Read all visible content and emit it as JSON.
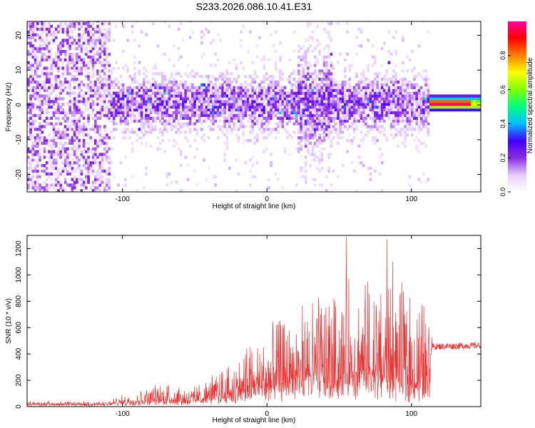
{
  "title": "S233.2026.086.10.41.E31",
  "chart_data": [
    {
      "type": "heatmap",
      "xlabel": "Height of straight line (km)",
      "ylabel": "Frequency (Hz)",
      "xlim": [
        -166,
        148
      ],
      "ylim": [
        -25,
        24
      ],
      "xticks": [
        -100,
        0,
        100
      ],
      "yticks": [
        -20,
        -10,
        0,
        10,
        20
      ],
      "colorbar": {
        "label": "Normalized spectral amplitude",
        "range": [
          0,
          1
        ],
        "ticks": [
          0.0,
          0.2,
          0.4,
          0.6,
          0.8
        ],
        "colors": [
          "#ffffff",
          "#e6ccff",
          "#8a2be2",
          "#4000ff",
          "#00bfff",
          "#00ff80",
          "#80ff00",
          "#ffff00",
          "#ff8000",
          "#ff0000",
          "#ff00a0"
        ]
      },
      "features": [
        {
          "name": "scattered noise",
          "x_range": [
            -166,
            -110
          ],
          "freq_range": [
            -25,
            24
          ],
          "amplitude": 0.12
        },
        {
          "name": "signal band",
          "x_range": [
            -110,
            112
          ],
          "freq_center": 0,
          "amplitude": 0.25
        },
        {
          "name": "strong carrier",
          "x_range": [
            112,
            148
          ],
          "freq_center": 0,
          "amplitude": 0.95
        }
      ]
    },
    {
      "type": "line",
      "xlabel": "Height of straight line (km)",
      "ylabel": "SNR (10 * v/v)",
      "xlim": [
        -166,
        148
      ],
      "ylim": [
        0,
        1300
      ],
      "xticks": [
        -100,
        0,
        100
      ],
      "yticks": [
        0,
        200,
        400,
        600,
        800,
        1000,
        1200
      ],
      "color": "#ee3333",
      "envelope": [
        {
          "x": -166,
          "base": 20,
          "peak": 40
        },
        {
          "x": -110,
          "base": 20,
          "peak": 40
        },
        {
          "x": -100,
          "base": 30,
          "peak": 90
        },
        {
          "x": -70,
          "base": 50,
          "peak": 200
        },
        {
          "x": -50,
          "base": 50,
          "peak": 150
        },
        {
          "x": -30,
          "base": 80,
          "peak": 300
        },
        {
          "x": -10,
          "base": 120,
          "peak": 500
        },
        {
          "x": 5,
          "base": 150,
          "peak": 650
        },
        {
          "x": 20,
          "base": 180,
          "peak": 750
        },
        {
          "x": 40,
          "base": 200,
          "peak": 900
        },
        {
          "x": 55,
          "base": 210,
          "peak": 1000
        },
        {
          "x": 75,
          "base": 200,
          "peak": 1050
        },
        {
          "x": 90,
          "base": 180,
          "peak": 950
        },
        {
          "x": 110,
          "base": 160,
          "peak": 800
        },
        {
          "x": 115,
          "base": 430,
          "peak": 480
        },
        {
          "x": 148,
          "base": 440,
          "peak": 490
        }
      ],
      "spikes": [
        {
          "x": 55,
          "y": 1290
        },
        {
          "x": 83,
          "y": 1270
        },
        {
          "x": 87,
          "y": 1100
        }
      ]
    }
  ]
}
